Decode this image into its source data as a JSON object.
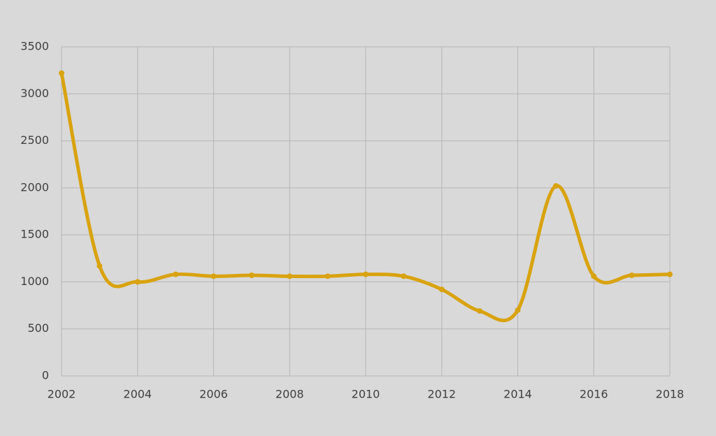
{
  "chart_data": {
    "type": "line",
    "x": [
      2002,
      2003,
      2004,
      2005,
      2006,
      2007,
      2008,
      2009,
      2010,
      2011,
      2012,
      2013,
      2014,
      2015,
      2016,
      2017,
      2018
    ],
    "series": [
      {
        "color": "#d9a30f",
        "values": [
          3220,
          1170,
          1000,
          1080,
          1060,
          1070,
          1060,
          1060,
          1080,
          1060,
          920,
          690,
          700,
          2020,
          1060,
          1070,
          1080
        ]
      }
    ],
    "xlim": [
      2002,
      2018
    ],
    "xticks": [
      2002,
      2004,
      2006,
      2008,
      2010,
      2012,
      2014,
      2016,
      2018
    ],
    "ylim": [
      0,
      3500
    ],
    "yticks": [
      0,
      500,
      1000,
      1500,
      2000,
      2500,
      3000,
      3500
    ],
    "grid": true,
    "smooth": true
  }
}
